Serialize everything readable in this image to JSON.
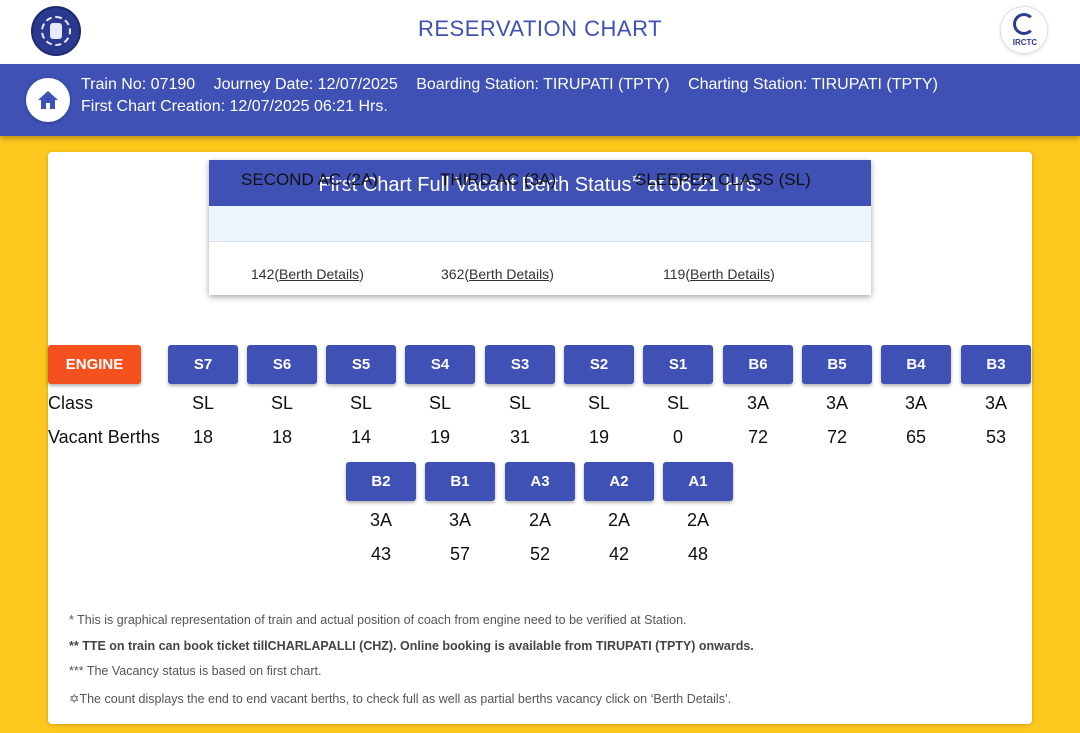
{
  "header": {
    "title": "RESERVATION CHART",
    "right_logo_label": "IRCTC"
  },
  "info": {
    "train_no": "Train No: 07190",
    "journey_date": "Journey Date: 12/07/2025",
    "boarding": "Boarding Station: TIRUPATI (TPTY)",
    "charting": "Charting Station: TIRUPATI (TPTY)",
    "chart_creation": "First Chart Creation: 12/07/2025 06:21 Hrs."
  },
  "status": {
    "title_a": "First Chart Full Vacant Berth Status",
    "star": "✡",
    "title_b": " at 06:21 Hrs.",
    "columns": [
      {
        "header": "SECOND AC (2A)",
        "count": "142",
        "link": "Berth Details"
      },
      {
        "header": "THIRD AC (3A)",
        "count": "362",
        "link": "Berth Details"
      },
      {
        "header": "SLEEPER CLASS (SL)",
        "count": "119",
        "link": "Berth Details"
      }
    ]
  },
  "layout": {
    "engine": "ENGINE",
    "class_label": "Class",
    "vacant_label": "Vacant Berths",
    "row1": [
      {
        "coach": "S7",
        "class": "SL",
        "vacant": "18"
      },
      {
        "coach": "S6",
        "class": "SL",
        "vacant": "18"
      },
      {
        "coach": "S5",
        "class": "SL",
        "vacant": "14"
      },
      {
        "coach": "S4",
        "class": "SL",
        "vacant": "19"
      },
      {
        "coach": "S3",
        "class": "SL",
        "vacant": "31"
      },
      {
        "coach": "S2",
        "class": "SL",
        "vacant": "19"
      },
      {
        "coach": "S1",
        "class": "SL",
        "vacant": "0"
      },
      {
        "coach": "B6",
        "class": "3A",
        "vacant": "72"
      },
      {
        "coach": "B5",
        "class": "3A",
        "vacant": "72"
      },
      {
        "coach": "B4",
        "class": "3A",
        "vacant": "65"
      },
      {
        "coach": "B3",
        "class": "3A",
        "vacant": "53"
      }
    ],
    "row2": [
      {
        "coach": "B2",
        "class": "3A",
        "vacant": "43"
      },
      {
        "coach": "B1",
        "class": "3A",
        "vacant": "57"
      },
      {
        "coach": "A3",
        "class": "2A",
        "vacant": "52"
      },
      {
        "coach": "A2",
        "class": "2A",
        "vacant": "42"
      },
      {
        "coach": "A1",
        "class": "2A",
        "vacant": "48"
      }
    ]
  },
  "notes": [
    "* This is graphical representation of train and actual position of coach from engine need to be verified at Station.",
    "** TTE on train can book ticket tillCHARLAPALLI (CHZ). Online booking is available from TIRUPATI (TPTY) onwards.",
    "*** The Vacancy status is based on first chart.",
    "✡The count displays the end to end vacant berths, to check full as well as partial berths vacancy click on ‘Berth Details’."
  ],
  "colors": {
    "primary": "#3f51b5",
    "engine": "#f4511e",
    "background": "#fdc81d"
  }
}
